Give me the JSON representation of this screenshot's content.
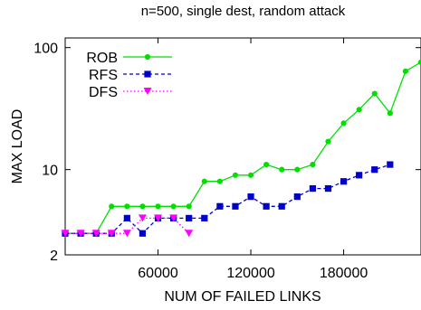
{
  "chart_data": {
    "type": "line",
    "title": "n=500, single dest, random attack",
    "xlabel": "NUM OF FAILED LINKS",
    "ylabel": "MAX LOAD",
    "x_scale": "linear",
    "y_scale": "log",
    "xlim": [
      0,
      230000
    ],
    "ylim": [
      2,
      120
    ],
    "x_ticks": [
      60000,
      120000,
      180000
    ],
    "x_tick_labels": [
      "60000",
      "120000",
      "180000"
    ],
    "y_ticks": [
      2,
      10,
      100
    ],
    "y_tick_labels": [
      "2",
      "10",
      "100"
    ],
    "grid": false,
    "legend_position": "top-left",
    "series": [
      {
        "name": "ROB",
        "color": "#00e000",
        "line_style": "solid",
        "marker": "circle",
        "x": [
          0,
          10000,
          20000,
          30000,
          40000,
          50000,
          60000,
          70000,
          80000,
          90000,
          100000,
          110000,
          120000,
          130000,
          140000,
          150000,
          160000,
          170000,
          180000,
          190000,
          200000,
          210000,
          220000,
          230000
        ],
        "y": [
          3,
          3,
          3,
          5,
          5,
          5,
          5,
          5,
          5,
          8,
          8,
          9,
          9,
          11,
          10,
          10,
          11,
          17,
          24,
          31,
          42,
          29,
          64,
          76
        ]
      },
      {
        "name": "RFS",
        "color": "#0000cc",
        "line_style": "dashed",
        "marker": "square",
        "x": [
          0,
          10000,
          20000,
          30000,
          40000,
          50000,
          60000,
          70000,
          80000,
          90000,
          100000,
          110000,
          120000,
          130000,
          140000,
          150000,
          160000,
          170000,
          180000,
          190000,
          200000,
          210000
        ],
        "y": [
          3,
          3,
          3,
          3,
          4,
          3,
          4,
          4,
          4,
          4,
          5,
          5,
          6,
          5,
          5,
          6,
          7,
          7,
          8,
          9,
          10,
          11
        ]
      },
      {
        "name": "DFS",
        "color": "#ff00ff",
        "line_style": "dotted",
        "marker": "triangle-down",
        "x": [
          0,
          10000,
          20000,
          30000,
          40000,
          50000,
          60000,
          70000,
          80000
        ],
        "y": [
          3,
          3,
          3,
          3,
          3,
          4,
          4,
          4,
          3
        ]
      }
    ]
  }
}
